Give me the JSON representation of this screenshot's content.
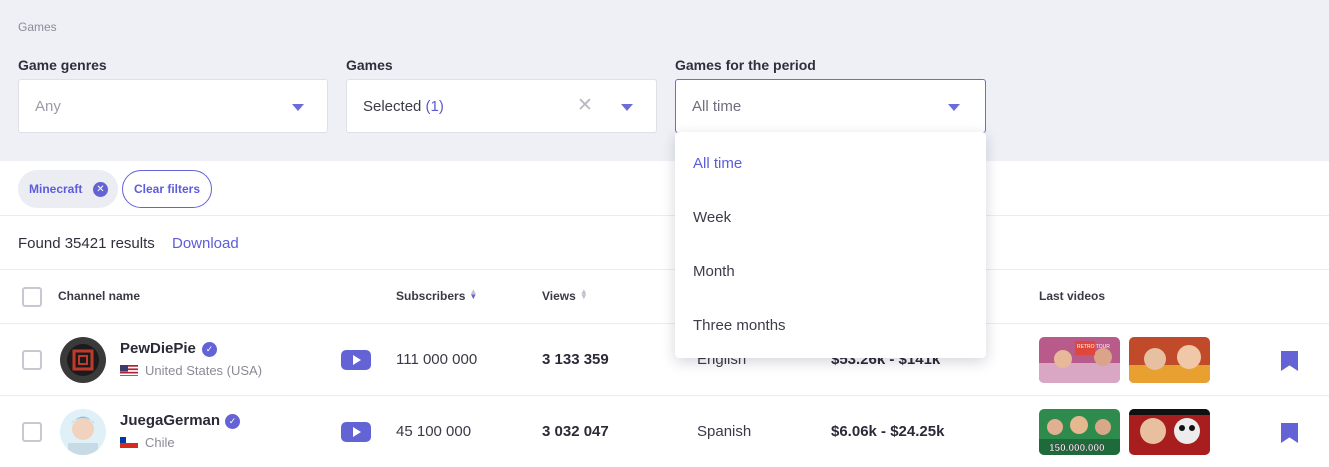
{
  "breadcrumb": "Games",
  "filters": {
    "genres": {
      "label": "Game genres",
      "value": "Any"
    },
    "games": {
      "label": "Games",
      "value": "Selected",
      "count": "(1)",
      "clear_icon": "✕"
    },
    "period": {
      "label": "Games for the period",
      "value": "All time"
    }
  },
  "period_options": [
    "All time",
    "Week",
    "Month",
    "Three months"
  ],
  "chips": {
    "active": "Minecraft",
    "clear": "Clear filters"
  },
  "results": {
    "found": "Found 35421 results",
    "download": "Download"
  },
  "columns": {
    "channel": "Channel name",
    "subscribers": "Subscribers",
    "views": "Views",
    "last_videos": "Last videos"
  },
  "rows": [
    {
      "name": "PewDiePie",
      "country": "United States (USA)",
      "subscribers": "111 000 000",
      "views": "3 133 359",
      "language": "English",
      "price": "$53.26k - $141k"
    },
    {
      "name": "JuegaGerman",
      "country": "Chile",
      "subscribers": "45 100 000",
      "views": "3 032 047",
      "language": "Spanish",
      "price": "$6.06k - $24.25k"
    }
  ],
  "thumb_texts": {
    "row1_first": "RETRO TOUR",
    "row2_first": "150.000.000"
  },
  "icons": {
    "caret": "caret-down-icon",
    "clear": "clear-x-icon",
    "chip_remove": "chip-remove-icon",
    "verified": "verified-icon",
    "youtube": "youtube-icon",
    "bookmark": "bookmark-icon"
  },
  "colors": {
    "accent": "#6463d6",
    "panel": "#eff0f6"
  }
}
